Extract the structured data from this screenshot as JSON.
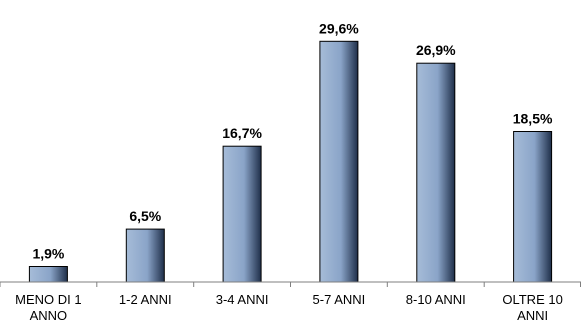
{
  "chart_data": {
    "type": "bar",
    "categories": [
      [
        "MENO DI 1",
        "ANNO"
      ],
      [
        "1-2 ANNI"
      ],
      [
        "3-4 ANNI"
      ],
      [
        "5-7 ANNI"
      ],
      [
        "8-10 ANNI"
      ],
      [
        "OLTRE 10",
        "ANNI"
      ]
    ],
    "values": [
      1.9,
      6.5,
      16.7,
      29.6,
      26.9,
      18.5
    ],
    "value_labels": [
      "1,9%",
      "6,5%",
      "16,7%",
      "29,6%",
      "26,9%",
      "18,5%"
    ],
    "unit": "%",
    "ylim": [
      0,
      30
    ],
    "grid": false,
    "legend": "none",
    "colors": {
      "bar_light": "#a6bcd8",
      "bar_mid": "#8aa4c8",
      "bar_dark": "#1f2f4a",
      "bar_outline": "#000000",
      "axis": "#7f7f7f"
    }
  }
}
